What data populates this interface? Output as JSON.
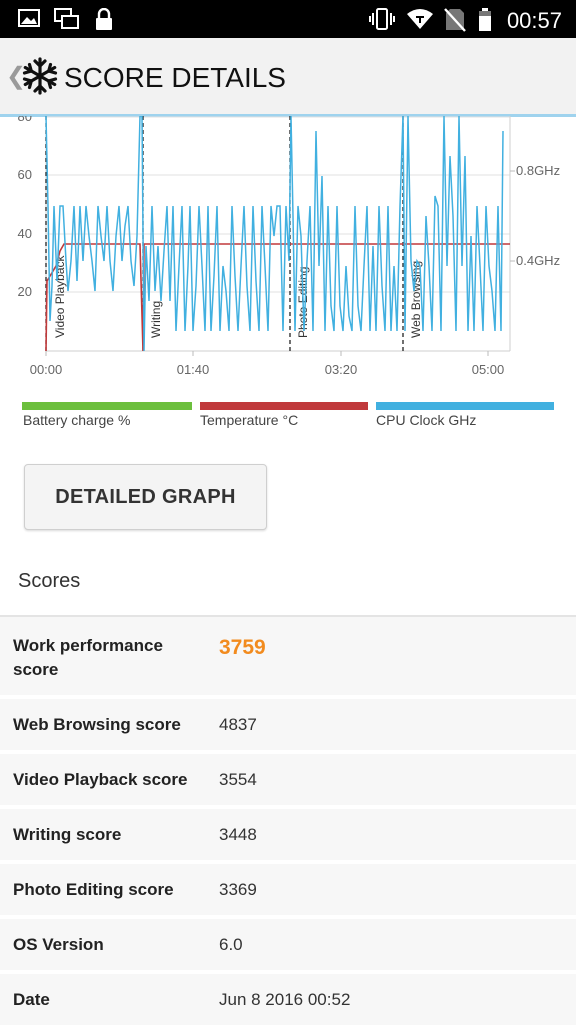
{
  "status_bar": {
    "time": "00:57",
    "icons": [
      "image-icon",
      "multiwindow-icon",
      "lock-icon",
      "vibrate-icon",
      "wifi-icon",
      "no-sim-icon",
      "battery-icon"
    ]
  },
  "header": {
    "back_icon": "chevron-left-icon",
    "logo_icon": "snowflake-icon",
    "title": "SCORE DETAILS"
  },
  "chart": {
    "left_axis_ticks": [
      "80",
      "60",
      "40",
      "20"
    ],
    "right_axis_ticks": [
      "0.8GHz",
      "0.4GHz"
    ],
    "x_ticks": [
      "00:00",
      "01:40",
      "03:20",
      "05:00"
    ],
    "section_labels": [
      "Video Playback",
      "Writing",
      "Photo Editing",
      "Web Browsing"
    ]
  },
  "legend": [
    {
      "label": "Battery charge %",
      "color": "#6cbf3d"
    },
    {
      "label": "Temperature °C",
      "color": "#c0393b"
    },
    {
      "label": "CPU Clock GHz",
      "color": "#41b0e0"
    }
  ],
  "detailed_graph_button": "DETAILED GRAPH",
  "scores": {
    "title": "Scores",
    "rows": [
      {
        "label": "Work performance score",
        "value": "3759"
      },
      {
        "label": "Web Browsing score",
        "value": "4837"
      },
      {
        "label": "Video Playback score",
        "value": "3554"
      },
      {
        "label": "Writing score",
        "value": "3448"
      },
      {
        "label": "Photo Editing score",
        "value": "3369"
      },
      {
        "label": "OS Version",
        "value": "6.0"
      },
      {
        "label": "Date",
        "value": "Jun 8 2016 00:52"
      }
    ]
  }
}
